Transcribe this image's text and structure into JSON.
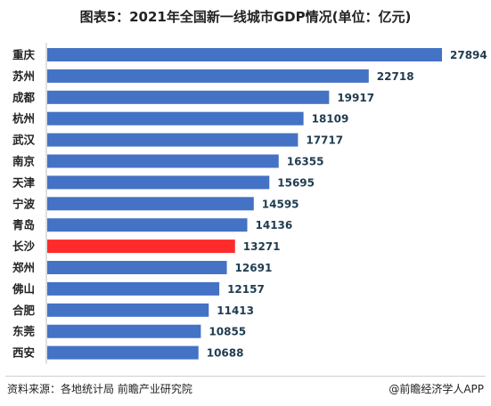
{
  "title": "图表5：2021年全国新一线城市GDP情况(单位：亿元)",
  "colors": {
    "bar": "#4472C4",
    "highlight": "#FF2A2A",
    "label": "#1f3c50",
    "category": "#222222"
  },
  "chart_data": {
    "type": "bar",
    "orientation": "horizontal",
    "categories": [
      "重庆",
      "苏州",
      "成都",
      "杭州",
      "武汉",
      "南京",
      "天津",
      "宁波",
      "青岛",
      "长沙",
      "郑州",
      "佛山",
      "合肥",
      "东莞",
      "西安"
    ],
    "values": [
      27894,
      22718,
      19917,
      18109,
      17717,
      16355,
      15695,
      14595,
      14136,
      13271,
      12691,
      12157,
      11413,
      10855,
      10688
    ],
    "highlight_category": "长沙",
    "xlim": [
      0,
      27894
    ],
    "grid": false,
    "data_labels": true
  },
  "footer": {
    "source": "资料来源：各地统计局 前瞻产业研究院",
    "brand": "@前瞻经济学人APP"
  }
}
